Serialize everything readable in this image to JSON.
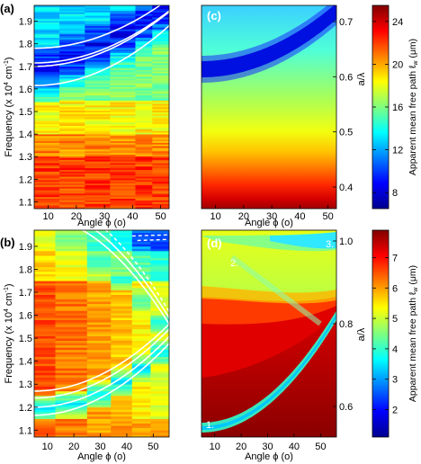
{
  "colors": {
    "jet_dark_blue": "#00008f",
    "jet_blue": "#0000ff",
    "jet_cyan": "#00ffff",
    "jet_yellow": "#ffff00",
    "jet_red": "#ff0000",
    "jet_dark_red": "#800000",
    "curve": "#ffffff"
  },
  "chart_data": [
    {
      "panel": "(a)",
      "type": "heatmap",
      "xlabel": "Angle ϕ (o)",
      "ylabel": "Frequency (x 10^4 cm^-1)",
      "x_ticks": [
        10,
        20,
        30,
        40,
        50
      ],
      "y_ticks": [
        1.1,
        1.2,
        1.3,
        1.4,
        1.5,
        1.6,
        1.7,
        1.8,
        1.9
      ],
      "xlim": [
        5,
        53
      ],
      "ylim": [
        1.07,
        1.97
      ],
      "angle_columns": [
        5,
        14,
        23,
        32,
        41,
        47,
        53
      ],
      "description_values_um": "measured apparent mean free path ~8 (blue band 1.6-1.8) to ~24 (red below 1.3)",
      "overlay_curves": 4
    },
    {
      "panel": "(c)",
      "type": "heatmap",
      "xlabel": "Angle ϕ (o)",
      "y_right_label": "a/λ",
      "x_ticks": [
        10,
        20,
        30,
        40,
        50
      ],
      "y_right_ticks": [
        0.4,
        0.5,
        0.6,
        0.7
      ],
      "xlim": [
        5,
        53
      ],
      "colorbar": {
        "label": "Apparent mean free path ℓw (μm)",
        "ticks": [
          8,
          12,
          16,
          20,
          24
        ],
        "range": [
          6.5,
          25.5
        ]
      }
    },
    {
      "panel": "(b)",
      "type": "heatmap",
      "xlabel": "Angle ϕ (o)",
      "ylabel": "Frequency (x 10^4 cm^-1)",
      "x_ticks": [
        10,
        20,
        30,
        40,
        50
      ],
      "y_ticks": [
        1.1,
        1.2,
        1.3,
        1.4,
        1.5,
        1.6,
        1.7,
        1.8,
        1.9
      ],
      "xlim": [
        5,
        56
      ],
      "ylim": [
        1.07,
        1.97
      ],
      "overlay_curves_solid": 6,
      "overlay_curves_dashed": 2
    },
    {
      "panel": "(d)",
      "type": "heatmap",
      "xlabel": "Angle ϕ (o)",
      "y_right_label": "a/λ",
      "x_ticks": [
        10,
        20,
        30,
        40,
        50
      ],
      "y_right_ticks": [
        0.6,
        0.8,
        1.0
      ],
      "xlim": [
        5,
        56
      ],
      "mode_labels": [
        "1.",
        "2.",
        "3."
      ],
      "colorbar": {
        "label": "Apparent mean free path ℓw (μm)",
        "ticks": [
          2,
          3,
          4,
          5,
          6,
          7
        ],
        "range": [
          1.1,
          7.9
        ]
      }
    }
  ],
  "labels": {
    "panel_a": "(a)",
    "panel_b": "(b)",
    "panel_c": "(c)",
    "panel_d": "(d)",
    "ylabel_main": "Frequency (x 10",
    "ylabel_exp": "4",
    "ylabel_unit": " cm",
    "ylabel_unit_exp": "-1",
    "ylabel_close": ")",
    "xlabel": "Angle ϕ (o)",
    "aol": "a/λ",
    "cbar_label": "Apparent mean free path ℓ",
    "cbar_sub": "w",
    "cbar_unit": " (μm)"
  }
}
